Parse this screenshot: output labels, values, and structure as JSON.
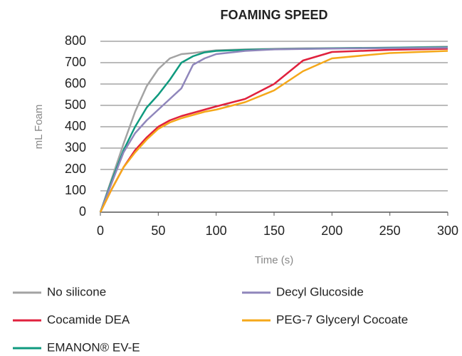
{
  "chart_data": {
    "type": "line",
    "title": "FOAMING SPEED",
    "xlabel": "Time (s)",
    "ylabel": "mL Foam",
    "x": [
      0,
      10,
      20,
      30,
      40,
      50,
      60,
      70,
      80,
      90,
      100,
      125,
      150,
      175,
      200,
      250,
      300
    ],
    "series": [
      {
        "name": "No silicone",
        "color": "#a3a3a3",
        "values": [
          0,
          160,
          320,
          470,
          590,
          670,
          720,
          740,
          745,
          752,
          758,
          762,
          765,
          767,
          768,
          770,
          775
        ]
      },
      {
        "name": "Cocamide DEA",
        "color": "#e0213d",
        "values": [
          0,
          110,
          210,
          290,
          350,
          400,
          430,
          450,
          465,
          480,
          495,
          530,
          600,
          710,
          750,
          760,
          765
        ]
      },
      {
        "name": "EMANON® EV-E",
        "color": "#0f9a7f",
        "values": [
          0,
          150,
          290,
          400,
          490,
          550,
          620,
          700,
          730,
          748,
          755,
          760,
          763,
          765,
          767,
          770,
          772
        ]
      },
      {
        "name": "Decyl Glucoside",
        "color": "#8f86bb",
        "values": [
          0,
          140,
          280,
          370,
          430,
          480,
          530,
          580,
          690,
          720,
          740,
          755,
          762,
          764,
          766,
          768,
          770
        ]
      },
      {
        "name": "PEG-7 Glyceryl Cocoate",
        "color": "#f5a81a",
        "values": [
          0,
          110,
          210,
          280,
          340,
          390,
          420,
          440,
          455,
          470,
          480,
          515,
          570,
          660,
          720,
          745,
          755
        ]
      }
    ],
    "xlim": [
      0,
      300
    ],
    "xticks": [
      0,
      50,
      100,
      150,
      200,
      250,
      300
    ],
    "ylim": [
      0,
      800
    ],
    "yticks": [
      0,
      100,
      200,
      300,
      400,
      500,
      600,
      700,
      800
    ],
    "grid": true,
    "legend": "bottom"
  }
}
